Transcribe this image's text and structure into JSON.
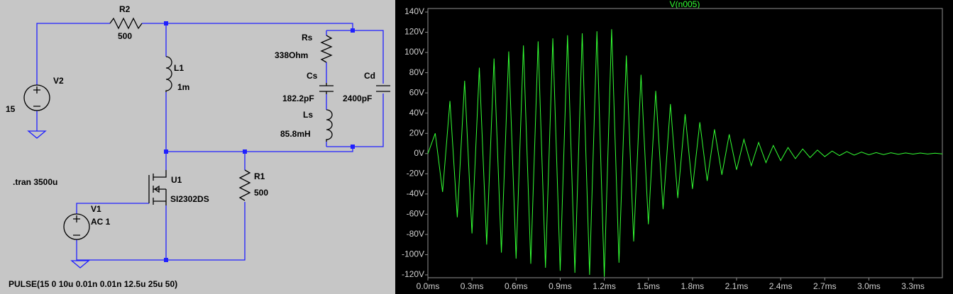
{
  "schematic": {
    "labels": {
      "r2_name": "R2",
      "r2_value": "500",
      "v2_name": "V2",
      "v2_value": "15",
      "l1_name": "L1",
      "l1_value": "1m",
      "rs_name": "Rs",
      "rs_value": "338Ohm",
      "cs_name": "Cs",
      "cs_value": "182.2pF",
      "cd_name": "Cd",
      "cd_value": "2400pF",
      "ls_name": "Ls",
      "ls_value": "85.8mH",
      "tran": ".tran 3500u",
      "u1_name": "U1",
      "u1_value": "SI2302DS",
      "r1_name": "R1",
      "r1_value": "500",
      "v1_name": "V1",
      "v1_value": "AC 1",
      "pulse": "PULSE(15 0 10u 0.01n 0.01n 12.5u 25u 50)"
    }
  },
  "chart_data": {
    "type": "line",
    "title": "V(n005)",
    "x": [
      0,
      0.05,
      0.1,
      0.15,
      0.2,
      0.25,
      0.3,
      0.35,
      0.4,
      0.45,
      0.5,
      0.55,
      0.6,
      0.65,
      0.7,
      0.75,
      0.8,
      0.85,
      0.9,
      0.95,
      1.0,
      1.05,
      1.1,
      1.15,
      1.2,
      1.25,
      1.3,
      1.35,
      1.4,
      1.45,
      1.5,
      1.55,
      1.6,
      1.65,
      1.7,
      1.75,
      1.8,
      1.85,
      1.9,
      1.95,
      2.0,
      2.05,
      2.1,
      2.15,
      2.2,
      2.25,
      2.3,
      2.35,
      2.4,
      2.45,
      2.5,
      2.55,
      2.6,
      2.65,
      2.7,
      2.75,
      2.8,
      2.85,
      2.9,
      2.95,
      3.0,
      3.05,
      3.1,
      3.15,
      3.2,
      3.25,
      3.3,
      3.35,
      3.4,
      3.45,
      3.5
    ],
    "series": [
      {
        "name": "V(n005)",
        "color": "#33ff33",
        "values": [
          0,
          20,
          -38,
          52,
          -63,
          72,
          -79,
          85,
          -90,
          94,
          -98,
          101,
          -104,
          107,
          -109,
          111,
          -113,
          114,
          -116,
          117,
          -118,
          119,
          -120,
          121,
          -122,
          123,
          -108,
          97,
          -87,
          78,
          -70,
          62,
          -55,
          49,
          -44,
          39,
          -35,
          31,
          -27,
          24,
          -21,
          19,
          -16,
          14,
          -12,
          11,
          -9,
          8,
          -7,
          6,
          -5,
          4.5,
          -4,
          3.5,
          -3,
          2.5,
          -2,
          2,
          -1.5,
          1.5,
          -1.2,
          1,
          -1,
          0.8,
          -0.7,
          0.6,
          -0.5,
          0.5,
          -0.4,
          0.4,
          -0.3
        ]
      }
    ],
    "xlim": [
      0,
      3.5
    ],
    "ylim": [
      -120,
      140
    ],
    "xticks": [
      {
        "value": 0,
        "label": "0.0ms"
      },
      {
        "value": 0.3,
        "label": "0.3ms"
      },
      {
        "value": 0.6,
        "label": "0.6ms"
      },
      {
        "value": 0.9,
        "label": "0.9ms"
      },
      {
        "value": 1.2,
        "label": "1.2ms"
      },
      {
        "value": 1.5,
        "label": "1.5ms"
      },
      {
        "value": 1.8,
        "label": "1.8ms"
      },
      {
        "value": 2.1,
        "label": "2.1ms"
      },
      {
        "value": 2.4,
        "label": "2.4ms"
      },
      {
        "value": 2.7,
        "label": "2.7ms"
      },
      {
        "value": 3.0,
        "label": "3.0ms"
      },
      {
        "value": 3.3,
        "label": "3.3ms"
      }
    ],
    "yticks": [
      {
        "value": 140,
        "label": "140V"
      },
      {
        "value": 120,
        "label": "120V"
      },
      {
        "value": 100,
        "label": "100V"
      },
      {
        "value": 80,
        "label": "80V"
      },
      {
        "value": 60,
        "label": "60V"
      },
      {
        "value": 40,
        "label": "40V"
      },
      {
        "value": 20,
        "label": "20V"
      },
      {
        "value": 0,
        "label": "0V"
      },
      {
        "value": -20,
        "label": "-20V"
      },
      {
        "value": -40,
        "label": "-40V"
      },
      {
        "value": -60,
        "label": "-60V"
      },
      {
        "value": -80,
        "label": "-80V"
      },
      {
        "value": -100,
        "label": "-100V"
      },
      {
        "value": -120,
        "label": "-120V"
      }
    ],
    "grid": false
  }
}
